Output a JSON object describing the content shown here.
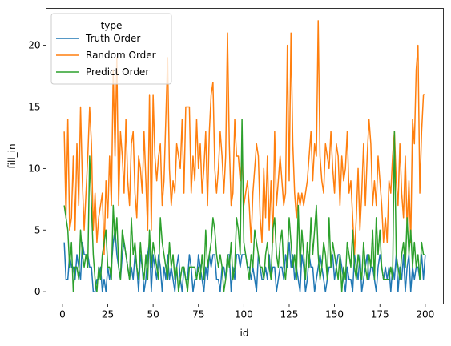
{
  "chart_data": {
    "type": "line",
    "title": "",
    "xlabel": "id",
    "ylabel": "fill_in",
    "xlim": [
      -9,
      210
    ],
    "ylim": [
      -1,
      23
    ],
    "xticks": [
      0,
      25,
      50,
      75,
      100,
      125,
      150,
      175,
      200
    ],
    "yticks": [
      0,
      5,
      10,
      15,
      20
    ],
    "grid": false,
    "legend": {
      "title": "type",
      "placement": "top-left"
    },
    "x": [
      1,
      2,
      3,
      4,
      5,
      6,
      7,
      8,
      9,
      10,
      11,
      12,
      13,
      14,
      15,
      16,
      17,
      18,
      19,
      20,
      21,
      22,
      23,
      24,
      25,
      26,
      27,
      28,
      29,
      30,
      31,
      32,
      33,
      34,
      35,
      36,
      37,
      38,
      39,
      40,
      41,
      42,
      43,
      44,
      45,
      46,
      47,
      48,
      49,
      50,
      51,
      52,
      53,
      54,
      55,
      56,
      57,
      58,
      59,
      60,
      61,
      62,
      63,
      64,
      65,
      66,
      67,
      68,
      69,
      70,
      71,
      72,
      73,
      74,
      75,
      76,
      77,
      78,
      79,
      80,
      81,
      82,
      83,
      84,
      85,
      86,
      87,
      88,
      89,
      90,
      91,
      92,
      93,
      94,
      95,
      96,
      97,
      98,
      99,
      100,
      101,
      102,
      103,
      104,
      105,
      106,
      107,
      108,
      109,
      110,
      111,
      112,
      113,
      114,
      115,
      116,
      117,
      118,
      119,
      120,
      121,
      122,
      123,
      124,
      125,
      126,
      127,
      128,
      129,
      130,
      131,
      132,
      133,
      134,
      135,
      136,
      137,
      138,
      139,
      140,
      141,
      142,
      143,
      144,
      145,
      146,
      147,
      148,
      149,
      150,
      151,
      152,
      153,
      154,
      155,
      156,
      157,
      158,
      159,
      160,
      161,
      162,
      163,
      164,
      165,
      166,
      167,
      168,
      169,
      170,
      171,
      172,
      173,
      174,
      175,
      176,
      177,
      178,
      179,
      180,
      181,
      182,
      183,
      184,
      185,
      186,
      187,
      188,
      189,
      190,
      191,
      192,
      193,
      194,
      195,
      196,
      197,
      198,
      199,
      200
    ],
    "series": [
      {
        "name": "Truth Order",
        "color": "#1f77b4",
        "values": [
          4,
          1,
          1,
          3,
          2,
          2,
          1,
          3,
          2,
          1,
          4,
          3,
          3,
          3,
          2,
          2,
          0,
          0,
          1,
          1,
          2,
          0,
          1,
          0,
          2,
          1,
          2,
          4,
          5,
          3,
          2,
          1,
          3,
          4,
          3,
          2,
          1,
          2,
          1,
          3,
          2,
          0,
          3,
          2,
          0,
          1,
          3,
          4,
          0,
          3,
          2,
          1,
          3,
          2,
          0,
          2,
          1,
          3,
          1,
          2,
          1,
          0,
          2,
          3,
          1,
          0,
          2,
          1,
          1,
          3,
          2,
          0,
          1,
          1,
          3,
          2,
          1,
          0,
          2,
          1,
          3,
          2,
          3,
          3,
          1,
          1,
          0,
          2,
          2,
          1,
          3,
          3,
          0,
          2,
          1,
          3,
          3,
          2,
          3,
          3,
          3,
          2,
          2,
          1,
          2,
          1,
          0,
          3,
          2,
          1,
          1,
          2,
          1,
          3,
          1,
          2,
          2,
          0,
          1,
          2,
          2,
          1,
          3,
          2,
          4,
          2,
          3,
          1,
          2,
          1,
          0,
          3,
          2,
          0,
          1,
          3,
          2,
          2,
          0,
          1,
          2,
          3,
          2,
          1,
          0,
          1,
          2,
          2,
          3,
          1,
          2,
          3,
          3,
          2,
          1,
          0,
          2,
          1,
          1,
          0,
          3,
          2,
          1,
          3,
          0,
          1,
          2,
          3,
          1,
          2,
          2,
          1,
          0,
          2,
          3,
          2,
          1,
          2,
          1,
          2,
          0,
          2,
          1,
          3,
          0,
          2,
          1,
          3,
          0,
          2,
          3,
          0,
          2,
          1,
          2,
          2,
          1,
          3,
          1,
          3
        ]
      },
      {
        "name": "Random Order",
        "color": "#ff7f0e",
        "values": [
          13,
          6,
          14,
          5,
          6,
          11,
          5,
          12,
          7,
          15,
          9,
          5,
          8,
          11,
          15,
          12,
          5,
          8,
          4,
          6,
          7,
          8,
          3,
          9,
          6,
          11,
          7,
          18,
          11,
          19,
          7,
          13,
          11,
          8,
          14,
          9,
          7,
          12,
          13,
          8,
          6,
          11,
          10,
          8,
          13,
          9,
          5,
          16,
          5,
          16,
          11,
          9,
          11,
          12,
          7,
          9,
          14,
          19,
          10,
          7,
          9,
          8,
          12,
          11,
          10,
          14,
          8,
          15,
          15,
          15,
          8,
          11,
          9,
          14,
          10,
          12,
          8,
          10,
          13,
          7,
          13,
          16,
          17,
          10,
          8,
          10,
          13,
          11,
          8,
          11,
          21,
          12,
          7,
          8,
          14,
          11,
          11,
          9,
          11,
          7,
          8,
          9,
          7,
          4,
          8,
          10,
          12,
          11,
          6,
          4,
          10,
          6,
          11,
          5,
          9,
          4,
          13,
          7,
          9,
          11,
          9,
          7,
          8,
          20,
          9,
          21,
          12,
          8,
          6,
          8,
          7,
          8,
          7,
          8,
          9,
          11,
          13,
          9,
          12,
          11,
          22,
          11,
          9,
          8,
          12,
          11,
          10,
          13,
          10,
          8,
          12,
          11,
          7,
          11,
          9,
          10,
          13,
          8,
          9,
          6,
          3,
          6,
          10,
          5,
          8,
          12,
          7,
          11,
          14,
          12,
          7,
          9,
          7,
          11,
          9,
          7,
          4,
          6,
          4,
          9,
          8,
          11,
          13,
          9,
          7,
          12,
          8,
          6,
          11,
          5,
          9,
          4,
          14,
          12,
          18,
          20,
          8,
          13,
          16,
          16
        ]
      },
      {
        "name": "Predict Order",
        "color": "#2ca02c",
        "values": [
          7,
          6,
          5,
          2,
          4,
          0,
          2,
          2,
          1,
          5,
          3,
          2,
          3,
          2,
          11,
          7,
          3,
          1,
          0,
          2,
          1,
          3,
          4,
          5,
          2,
          2,
          1,
          7,
          4,
          6,
          2,
          1,
          5,
          4,
          3,
          2,
          1,
          6,
          3,
          4,
          2,
          1,
          4,
          2,
          1,
          3,
          1,
          5,
          2,
          4,
          3,
          2,
          1,
          6,
          4,
          3,
          2,
          1,
          4,
          2,
          3,
          1,
          2,
          0,
          1,
          2,
          2,
          1,
          0,
          2,
          2,
          2,
          2,
          1,
          2,
          1,
          3,
          1,
          5,
          2,
          3,
          4,
          6,
          5,
          3,
          2,
          3,
          2,
          0,
          1,
          3,
          2,
          4,
          1,
          2,
          6,
          5,
          3,
          14,
          4,
          3,
          2,
          1,
          3,
          2,
          5,
          4,
          3,
          2,
          2,
          1,
          3,
          4,
          2,
          1,
          5,
          6,
          3,
          2,
          4,
          5,
          2,
          1,
          3,
          6,
          4,
          2,
          3,
          1,
          7,
          2,
          5,
          3,
          1,
          4,
          2,
          6,
          3,
          5,
          7,
          3,
          1,
          2,
          4,
          3,
          1,
          6,
          2,
          4,
          3,
          2,
          1,
          3,
          0,
          2,
          1,
          4,
          3,
          2,
          5,
          2,
          1,
          3,
          2,
          1,
          4,
          2,
          1,
          3,
          2,
          5,
          1,
          6,
          3,
          5,
          2,
          1,
          1,
          1,
          1,
          2,
          1,
          13,
          3,
          2,
          1,
          3,
          4,
          2,
          6,
          3,
          5,
          2,
          4,
          2,
          3,
          1,
          4,
          3,
          3
        ]
      }
    ]
  }
}
